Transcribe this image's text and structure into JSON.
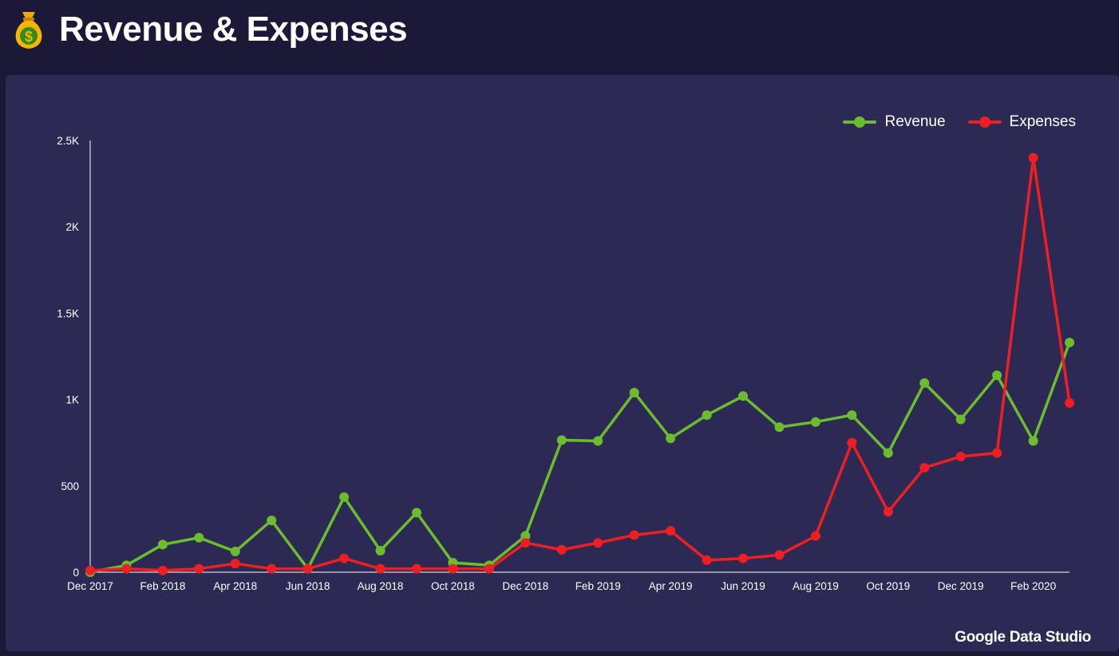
{
  "header": {
    "title": "Revenue & Expenses",
    "icon": "money-bag-icon"
  },
  "branding": "Google Data Studio",
  "colors": {
    "background": "#1b1838",
    "panel": "#2c2a55",
    "revenue": "#6cbd2e",
    "expenses": "#ee1f23",
    "axis": "#ffffff"
  },
  "chart_data": {
    "type": "line",
    "title": "Revenue & Expenses",
    "xlabel": "",
    "ylabel": "",
    "ylim": [
      0,
      2500
    ],
    "yticks": [
      0,
      500,
      1000,
      1500,
      2000,
      2500
    ],
    "ytick_labels": [
      "0",
      "500",
      "1K",
      "1.5K",
      "2K",
      "2.5K"
    ],
    "x_tick_labels": [
      {
        "index": 0,
        "label": "Dec 2017"
      },
      {
        "index": 2,
        "label": "Feb 2018"
      },
      {
        "index": 4,
        "label": "Apr 2018"
      },
      {
        "index": 6,
        "label": "Jun 2018"
      },
      {
        "index": 8,
        "label": "Aug 2018"
      },
      {
        "index": 10,
        "label": "Oct 2018"
      },
      {
        "index": 12,
        "label": "Dec 2018"
      },
      {
        "index": 14,
        "label": "Feb 2019"
      },
      {
        "index": 16,
        "label": "Apr 2019"
      },
      {
        "index": 18,
        "label": "Jun 2019"
      },
      {
        "index": 20,
        "label": "Aug 2019"
      },
      {
        "index": 22,
        "label": "Oct 2019"
      },
      {
        "index": 24,
        "label": "Dec 2019"
      },
      {
        "index": 26,
        "label": "Feb 2020"
      }
    ],
    "categories": [
      "Dec 2017",
      "Jan 2018",
      "Feb 2018",
      "Mar 2018",
      "Apr 2018",
      "May 2018",
      "Jun 2018",
      "Jul 2018",
      "Aug 2018",
      "Sep 2018",
      "Oct 2018",
      "Nov 2018",
      "Dec 2018",
      "Jan 2019",
      "Feb 2019",
      "Mar 2019",
      "Apr 2019",
      "May 2019",
      "Jun 2019",
      "Jul 2019",
      "Aug 2019",
      "Sep 2019",
      "Oct 2019",
      "Nov 2019",
      "Dec 2019",
      "Jan 2020",
      "Feb 2020",
      "Mar 2020"
    ],
    "series": [
      {
        "name": "Revenue",
        "color": "#6cbd2e",
        "values": [
          0,
          40,
          160,
          200,
          120,
          300,
          20,
          435,
          125,
          345,
          55,
          40,
          210,
          765,
          760,
          1040,
          775,
          910,
          1020,
          840,
          870,
          910,
          690,
          1095,
          885,
          1140,
          760,
          1330
        ]
      },
      {
        "name": "Expenses",
        "color": "#ee1f23",
        "values": [
          10,
          20,
          10,
          20,
          50,
          20,
          20,
          80,
          20,
          20,
          20,
          20,
          170,
          130,
          170,
          215,
          240,
          70,
          80,
          100,
          210,
          750,
          350,
          605,
          670,
          690,
          2400,
          980
        ]
      }
    ],
    "legend_position": "top-right",
    "grid": false
  }
}
